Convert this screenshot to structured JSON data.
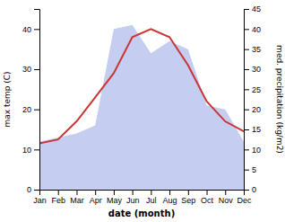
{
  "chart_data": {
    "type": "line",
    "xlabel": "date (month)",
    "ylabel": "max temp (C)",
    "y2label": "med. precipitation (kg/m2)",
    "categories": [
      "Jan",
      "Feb",
      "Mar",
      "Apr",
      "May",
      "Jun",
      "Jul",
      "Aug",
      "Sep",
      "Oct",
      "Nov",
      "Dec"
    ],
    "series": [
      {
        "type": "area",
        "axis": "y2",
        "color": "#c5cdf0",
        "values": [
          12,
          13,
          14,
          16,
          40,
          41,
          34,
          37,
          35,
          21,
          20,
          12
        ]
      },
      {
        "type": "line",
        "color": "#cc3333",
        "values": [
          11.5,
          12.5,
          17,
          23,
          29,
          38,
          40,
          38,
          31,
          22,
          17,
          14.5
        ]
      }
    ],
    "ylim": [
      0,
      45
    ],
    "yticks": [
      0,
      10,
      20,
      30,
      40
    ],
    "y2lim": [
      0,
      45
    ],
    "y2ticks": [
      0,
      5,
      10,
      15,
      20,
      25,
      30,
      35,
      40,
      45
    ],
    "grid": false
  }
}
